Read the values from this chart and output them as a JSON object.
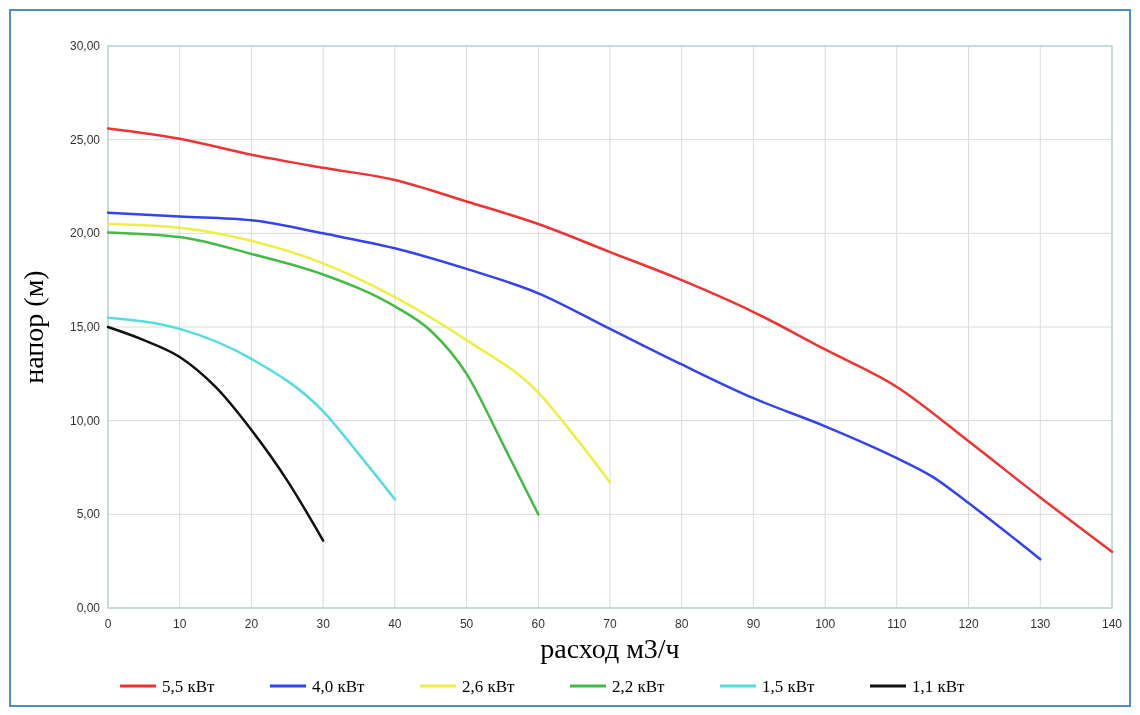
{
  "chart_data": {
    "type": "line",
    "xlabel": "расход м3/ч",
    "ylabel": "напор (м)",
    "xlim": [
      0,
      140
    ],
    "xticks": [
      0,
      10,
      20,
      30,
      40,
      50,
      60,
      70,
      80,
      90,
      100,
      110,
      120,
      130,
      140
    ],
    "ylim": [
      0,
      30
    ],
    "yticks": [
      {
        "value": 0,
        "label": "0,00"
      },
      {
        "value": 5,
        "label": "5,00"
      },
      {
        "value": 10,
        "label": "10,00"
      },
      {
        "value": 15,
        "label": "15,00"
      },
      {
        "value": 20,
        "label": "20,00"
      },
      {
        "value": 25,
        "label": "25,00"
      },
      {
        "value": 30,
        "label": "30,00"
      }
    ],
    "grid": true,
    "legend": "bottom",
    "marker": "none",
    "line_style": "solid",
    "series": [
      {
        "name": "5,5 кВт",
        "color": "#ee3333",
        "x": [
          0,
          10,
          20,
          30,
          40,
          50,
          60,
          70,
          80,
          90,
          100,
          110,
          120,
          130,
          140
        ],
        "values": [
          25.6,
          25.05,
          24.2,
          23.5,
          22.85,
          21.7,
          20.5,
          19.0,
          17.5,
          15.8,
          13.8,
          11.8,
          8.9,
          5.9,
          3.0
        ]
      },
      {
        "name": "4,0 кВт",
        "color": "#3344ee",
        "x": [
          0,
          10,
          20,
          30,
          40,
          50,
          60,
          70,
          80,
          90,
          100,
          110,
          115,
          120,
          130
        ],
        "values": [
          21.1,
          20.9,
          20.7,
          20.0,
          19.2,
          18.1,
          16.8,
          14.9,
          13.0,
          11.2,
          9.7,
          8.0,
          7.0,
          5.6,
          2.6
        ]
      },
      {
        "name": "2,6 кВт",
        "color": "#eeee44",
        "x": [
          0,
          10,
          20,
          30,
          40,
          50,
          60,
          65,
          70
        ],
        "values": [
          20.5,
          20.3,
          19.6,
          18.4,
          16.6,
          14.3,
          11.5,
          9.2,
          6.7
        ]
      },
      {
        "name": "2,2 кВт",
        "color": "#44bb44",
        "x": [
          0,
          10,
          20,
          30,
          40,
          45,
          50,
          55,
          60
        ],
        "values": [
          20.05,
          19.8,
          18.9,
          17.8,
          16.1,
          14.8,
          12.5,
          8.8,
          5.0
        ]
      },
      {
        "name": "1,5 кВт",
        "color": "#55dddd",
        "x": [
          0,
          10,
          20,
          30,
          35,
          40
        ],
        "values": [
          15.5,
          14.9,
          13.3,
          10.5,
          8.2,
          5.8
        ]
      },
      {
        "name": "1,1 кВт",
        "color": "#111111",
        "x": [
          0,
          5,
          10,
          15,
          20,
          25,
          30
        ],
        "values": [
          15.0,
          14.3,
          13.4,
          11.8,
          9.5,
          6.8,
          3.6
        ]
      }
    ]
  }
}
